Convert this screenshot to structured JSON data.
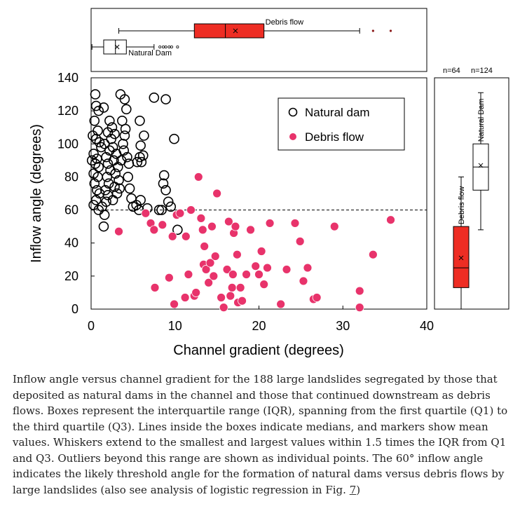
{
  "chart_data": [
    {
      "type": "scatter",
      "xlabel": "Channel gradient (degrees)",
      "ylabel": "Inflow angle (degrees)",
      "xlim": [
        0,
        40
      ],
      "ylim": [
        0,
        140
      ],
      "xticks": [
        "0",
        "10",
        "20",
        "30",
        "40"
      ],
      "yticks": [
        "0",
        "20",
        "40",
        "60",
        "80",
        "100",
        "120",
        "140"
      ],
      "threshold_y": 60,
      "legend_position": "top-right",
      "series": [
        {
          "name": "Natural dam",
          "marker": "open-circle",
          "color": "#000000",
          "points": [
            [
              0.5,
              130
            ],
            [
              0.6,
              123
            ],
            [
              0.9,
              120
            ],
            [
              1.5,
              122
            ],
            [
              0.4,
              114
            ],
            [
              0.8,
              108
            ],
            [
              0.2,
              105
            ],
            [
              0.6,
              103
            ],
            [
              1.0,
              101
            ],
            [
              1.2,
              98
            ],
            [
              0.3,
              94
            ],
            [
              0.7,
              91
            ],
            [
              0.1,
              90
            ],
            [
              0.5,
              88
            ],
            [
              0.9,
              86
            ],
            [
              0.3,
              82
            ],
            [
              0.8,
              80
            ],
            [
              0.4,
              76
            ],
            [
              0.7,
              72
            ],
            [
              1.0,
              70
            ],
            [
              0.6,
              66
            ],
            [
              0.3,
              63
            ],
            [
              0.9,
              60
            ],
            [
              1.3,
              62
            ],
            [
              1.6,
              57
            ],
            [
              1.5,
              50
            ],
            [
              1.8,
              65
            ],
            [
              2.0,
              69
            ],
            [
              1.7,
              72
            ],
            [
              2.1,
              76
            ],
            [
              1.9,
              80
            ],
            [
              2.3,
              84
            ],
            [
              2.0,
              88
            ],
            [
              1.8,
              92
            ],
            [
              2.2,
              96
            ],
            [
              1.6,
              100
            ],
            [
              2.4,
              103
            ],
            [
              2.0,
              107
            ],
            [
              2.5,
              110
            ],
            [
              2.2,
              114
            ],
            [
              2.8,
              106
            ],
            [
              2.6,
              98
            ],
            [
              3.0,
              94
            ],
            [
              2.7,
              90
            ],
            [
              3.2,
              86
            ],
            [
              2.9,
              82
            ],
            [
              3.3,
              78
            ],
            [
              2.8,
              74
            ],
            [
              3.1,
              70
            ],
            [
              2.6,
              66
            ],
            [
              3.4,
              73
            ],
            [
              3.8,
              100
            ],
            [
              4.0,
              105
            ],
            [
              3.5,
              130
            ],
            [
              4.0,
              127
            ],
            [
              4.2,
              121
            ],
            [
              3.7,
              114
            ],
            [
              4.1,
              109
            ],
            [
              3.9,
              96
            ],
            [
              4.3,
              92
            ],
            [
              4.5,
              88
            ],
            [
              3.6,
              90
            ],
            [
              4.4,
              80
            ],
            [
              4.6,
              73
            ],
            [
              4.8,
              67
            ],
            [
              5.0,
              62
            ],
            [
              5.4,
              63
            ],
            [
              5.7,
              60
            ],
            [
              5.5,
              89
            ],
            [
              6.0,
              89
            ],
            [
              5.8,
              92
            ],
            [
              6.2,
              93
            ],
            [
              5.9,
              99
            ],
            [
              6.3,
              105
            ],
            [
              5.8,
              114
            ],
            [
              5.9,
              66
            ],
            [
              6.7,
              61
            ],
            [
              7.5,
              128
            ],
            [
              8.9,
              127
            ],
            [
              9.9,
              103
            ],
            [
              8.4,
              60
            ],
            [
              8.6,
              76
            ],
            [
              8.7,
              81
            ],
            [
              8.9,
              72
            ],
            [
              9.2,
              65
            ],
            [
              9.5,
              62
            ],
            [
              8.1,
              60
            ],
            [
              10.3,
              48
            ]
          ]
        },
        {
          "name": "Debris flow",
          "marker": "filled-circle",
          "color": "#e8336b",
          "points": [
            [
              3.3,
              47
            ],
            [
              6.5,
              58
            ],
            [
              7.1,
              52
            ],
            [
              7.5,
              48
            ],
            [
              7.6,
              13
            ],
            [
              8.5,
              51
            ],
            [
              9.3,
              19
            ],
            [
              9.7,
              44
            ],
            [
              9.9,
              3
            ],
            [
              10.2,
              57
            ],
            [
              10.6,
              58
            ],
            [
              11.3,
              44
            ],
            [
              11.6,
              21
            ],
            [
              11.2,
              7
            ],
            [
              11.9,
              60
            ],
            [
              12.3,
              8
            ],
            [
              12.5,
              10
            ],
            [
              12.8,
              80
            ],
            [
              13.1,
              55
            ],
            [
              13.3,
              48
            ],
            [
              13.5,
              38
            ],
            [
              13.4,
              27
            ],
            [
              13.7,
              24
            ],
            [
              14.0,
              16
            ],
            [
              14.2,
              28
            ],
            [
              14.4,
              50
            ],
            [
              14.6,
              20
            ],
            [
              14.8,
              32
            ],
            [
              15.0,
              70
            ],
            [
              15.5,
              7
            ],
            [
              15.8,
              1
            ],
            [
              16.2,
              24
            ],
            [
              16.4,
              53
            ],
            [
              16.6,
              8
            ],
            [
              16.8,
              13
            ],
            [
              16.9,
              21
            ],
            [
              17.0,
              46
            ],
            [
              17.2,
              50
            ],
            [
              17.4,
              33
            ],
            [
              17.5,
              4
            ],
            [
              17.8,
              13
            ],
            [
              18.0,
              5
            ],
            [
              18.5,
              21
            ],
            [
              19.0,
              48
            ],
            [
              19.6,
              26
            ],
            [
              20.0,
              21
            ],
            [
              20.3,
              35
            ],
            [
              20.6,
              15
            ],
            [
              21.0,
              25
            ],
            [
              21.3,
              52
            ],
            [
              22.6,
              3
            ],
            [
              23.3,
              24
            ],
            [
              24.3,
              52
            ],
            [
              24.9,
              41
            ],
            [
              25.3,
              17
            ],
            [
              25.8,
              25
            ],
            [
              26.5,
              6
            ],
            [
              26.9,
              7
            ],
            [
              29.0,
              50
            ],
            [
              32.0,
              11
            ],
            [
              32.0,
              1
            ],
            [
              33.6,
              33
            ],
            [
              35.7,
              54
            ]
          ]
        }
      ]
    },
    {
      "type": "boxplot",
      "orientation": "horizontal",
      "axis": "Channel gradient (degrees)",
      "xlim": [
        0,
        40
      ],
      "boxes": [
        {
          "name": "Debris flow",
          "min": 3.3,
          "q1": 12.3,
          "median": 16.0,
          "mean": 17.2,
          "q3": 20.6,
          "max": 32.0,
          "outliers": [
            33.6,
            35.7
          ],
          "color": "#ee2d24"
        },
        {
          "name": "Natural Dam",
          "min": 0.1,
          "q1": 1.5,
          "median": 2.9,
          "mean": 3.1,
          "q3": 4.2,
          "max": 7.5,
          "outliers": [
            8.2,
            8.6,
            8.9,
            9.3,
            9.6,
            10.3
          ],
          "color": "#ffffff"
        }
      ]
    },
    {
      "type": "boxplot",
      "orientation": "vertical",
      "axis": "Inflow angle (degrees)",
      "ylim": [
        0,
        140
      ],
      "counts": [
        "n=64",
        "n=124"
      ],
      "boxes": [
        {
          "name": "Debris flow",
          "min": 0,
          "q1": 13,
          "median": 25,
          "mean": 31,
          "q3": 50,
          "max": 80,
          "color": "#ee2d24"
        },
        {
          "name": "Natural Dam",
          "min": 48,
          "q1": 72,
          "median": 86,
          "mean": 87,
          "q3": 100,
          "max": 131,
          "color": "#ffffff"
        }
      ]
    }
  ],
  "caption": {
    "text": "Inflow angle versus channel gradient for the 188 large landslides segregated by those that deposited as natural dams in the channel and those that continued downstream as debris flows. Boxes represent the interquartile range (IQR), spanning from the first quartile (Q1) to the third quartile (Q3). Lines inside the boxes indicate medians, and markers show mean values. Whiskers extend to the smallest and largest values within 1.5 times the IQR from Q1 and Q3. Outliers beyond this range are shown as individual points. The 60° inflow angle indicates the likely threshold angle for the formation of natural dams versus debris flows by large landslides (also see analysis of logistic regression in Fig. ",
    "figure_link": "7",
    "closing": ")"
  }
}
